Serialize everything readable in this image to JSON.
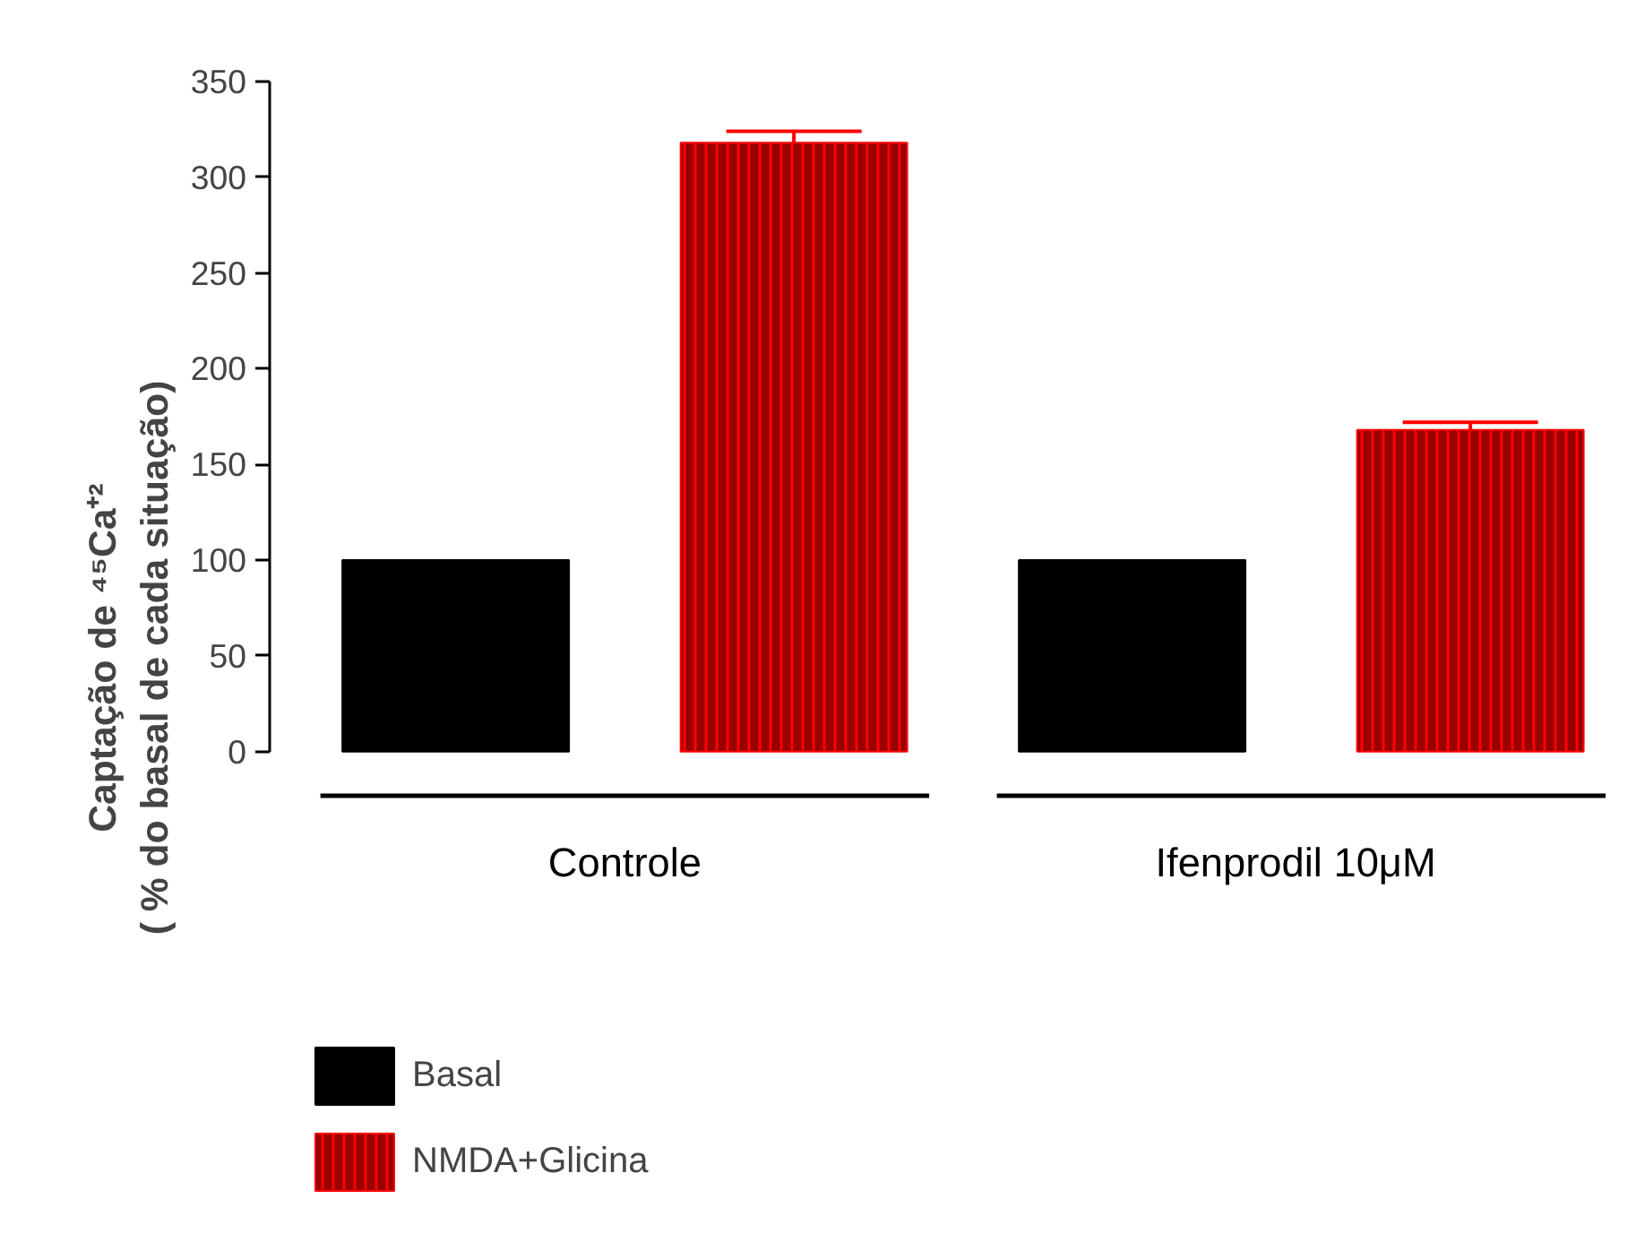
{
  "chart_data": {
    "type": "bar",
    "categories": [
      "Controle",
      "Ifenprodil  10μM"
    ],
    "ylabel": "Captação de ⁴⁵Ca⁺²\n( % do basal de cada situação)",
    "series": [
      {
        "name": "Basal",
        "color": "#000000",
        "values": [
          100,
          100
        ]
      },
      {
        "name": "NMDA+Glicina",
        "color": "#990000",
        "values": [
          318,
          168
        ],
        "errors": [
          6,
          4
        ]
      }
    ],
    "ylim": [
      0,
      350
    ],
    "yticks": [
      0,
      50,
      100,
      150,
      200,
      250,
      300,
      350
    ],
    "grid": false,
    "legend": "bottom left"
  }
}
